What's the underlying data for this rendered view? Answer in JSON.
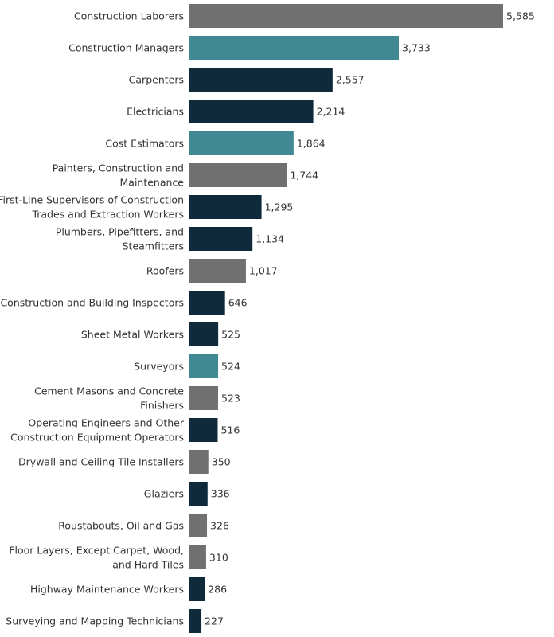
{
  "chart_data": {
    "type": "bar",
    "orientation": "horizontal",
    "grid": false,
    "legend": "none",
    "xlim": [
      0,
      5585
    ],
    "colors": {
      "dark": "#0f2b3b",
      "teal": "#418992",
      "gray": "#707070"
    },
    "categories": [
      [
        "Construction Laborers"
      ],
      [
        "Construction Managers"
      ],
      [
        "Carpenters"
      ],
      [
        "Electricians"
      ],
      [
        "Cost Estimators"
      ],
      [
        "Painters, Construction and",
        "Maintenance"
      ],
      [
        "First-Line Supervisors of Construction",
        "Trades and Extraction Workers"
      ],
      [
        "Plumbers, Pipefitters, and",
        "Steamfitters"
      ],
      [
        "Roofers"
      ],
      [
        "Construction and Building Inspectors"
      ],
      [
        "Sheet Metal Workers"
      ],
      [
        "Surveyors"
      ],
      [
        "Cement Masons and Concrete",
        "Finishers"
      ],
      [
        "Operating Engineers and Other",
        "Construction Equipment Operators"
      ],
      [
        "Drywall and Ceiling Tile Installers"
      ],
      [
        "Glaziers"
      ],
      [
        "Roustabouts, Oil and Gas"
      ],
      [
        "Floor Layers, Except Carpet, Wood,",
        "and Hard Tiles"
      ],
      [
        "Highway Maintenance Workers"
      ],
      [
        "Surveying and Mapping Technicians"
      ]
    ],
    "values": [
      5585,
      3733,
      2557,
      2214,
      1864,
      1744,
      1295,
      1134,
      1017,
      646,
      525,
      524,
      523,
      516,
      350,
      336,
      326,
      310,
      286,
      227
    ],
    "value_labels": [
      "5,585",
      "3,733",
      "2,557",
      "2,214",
      "1,864",
      "1,744",
      "1,295",
      "1,134",
      "1,017",
      "646",
      "525",
      "524",
      "523",
      "516",
      "350",
      "336",
      "326",
      "310",
      "286",
      "227"
    ],
    "bar_colors": [
      "gray",
      "teal",
      "dark",
      "dark",
      "teal",
      "gray",
      "dark",
      "dark",
      "gray",
      "dark",
      "dark",
      "teal",
      "gray",
      "dark",
      "gray",
      "dark",
      "gray",
      "gray",
      "dark",
      "dark"
    ]
  }
}
